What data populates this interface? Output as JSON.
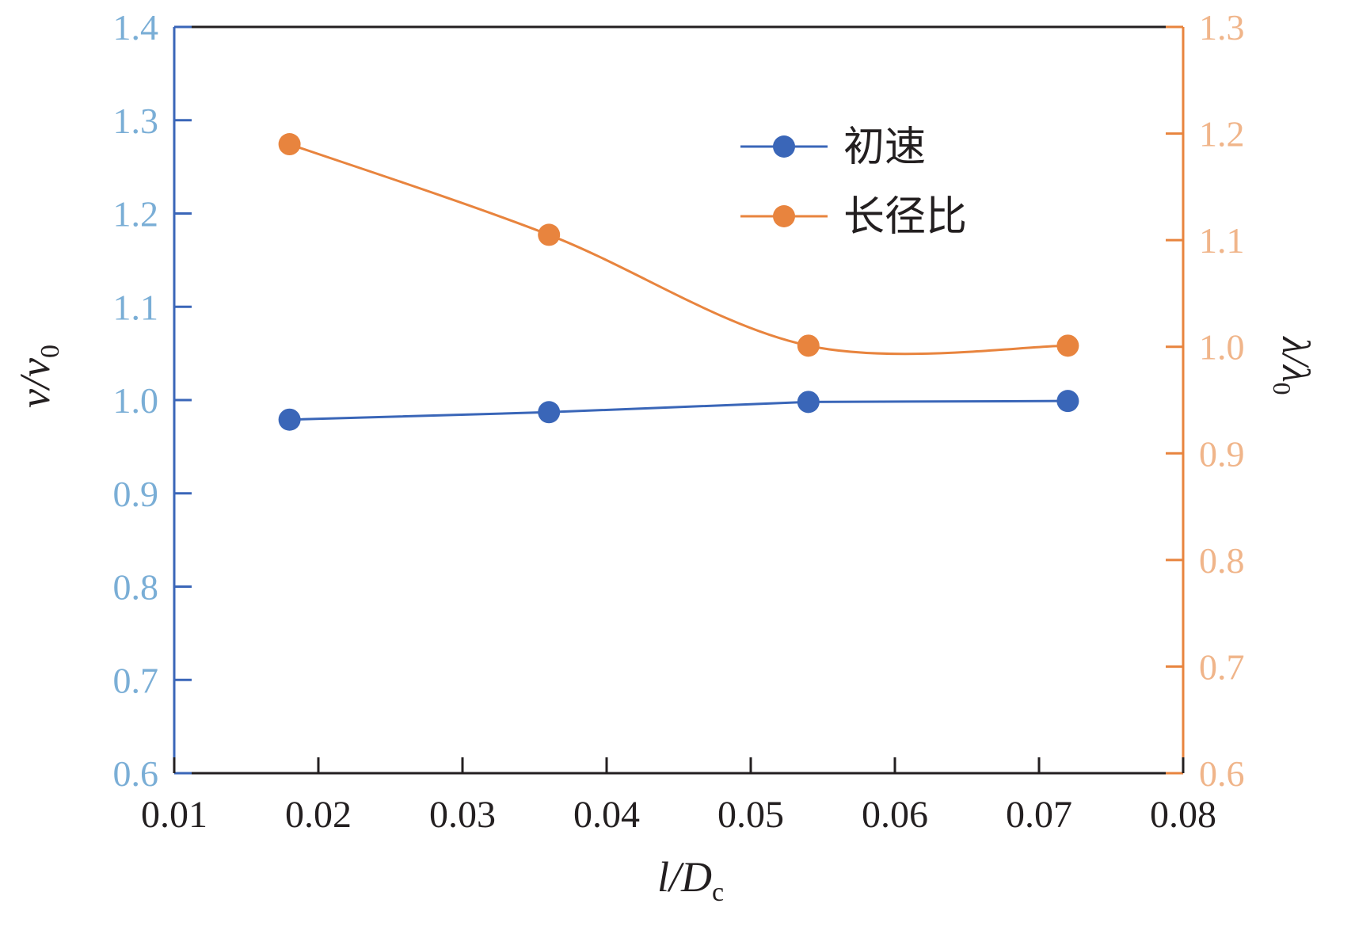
{
  "chart_data": {
    "type": "line",
    "x": [
      0.018,
      0.036,
      0.054,
      0.072
    ],
    "xlim": [
      0.01,
      0.08
    ],
    "x_ticks": [
      "0.01",
      "0.02",
      "0.03",
      "0.04",
      "0.05",
      "0.06",
      "0.07",
      "0.08"
    ],
    "xlabel": {
      "main": "l/D",
      "sub": "c"
    },
    "y_left": {
      "label": {
        "main": "v/v",
        "sub": "0"
      },
      "ylim": [
        0.6,
        1.4
      ],
      "ticks": [
        "0.6",
        "0.7",
        "0.8",
        "0.9",
        "1.0",
        "1.1",
        "1.2",
        "1.3",
        "1.4"
      ],
      "color": "#7aaed6",
      "axis_color": "#3a66b8"
    },
    "y_right": {
      "label": {
        "main": "λ/λ",
        "sub": "0"
      },
      "ylim": [
        0.6,
        1.3
      ],
      "ticks": [
        "0.6",
        "0.7",
        "0.8",
        "0.9",
        "1.0",
        "1.1",
        "1.2",
        "1.3"
      ],
      "color": "#f0b58a",
      "axis_color": "#e8843e"
    },
    "series": [
      {
        "name": "初速",
        "axis": "left",
        "color": "#3a66b8",
        "smooth": false,
        "values": [
          0.979,
          0.987,
          0.998,
          0.999
        ]
      },
      {
        "name": "长径比",
        "axis": "right",
        "color": "#e8843e",
        "smooth": true,
        "values": [
          1.19,
          1.105,
          1.001,
          1.001
        ]
      }
    ],
    "legend": "top-right",
    "grid": false
  }
}
